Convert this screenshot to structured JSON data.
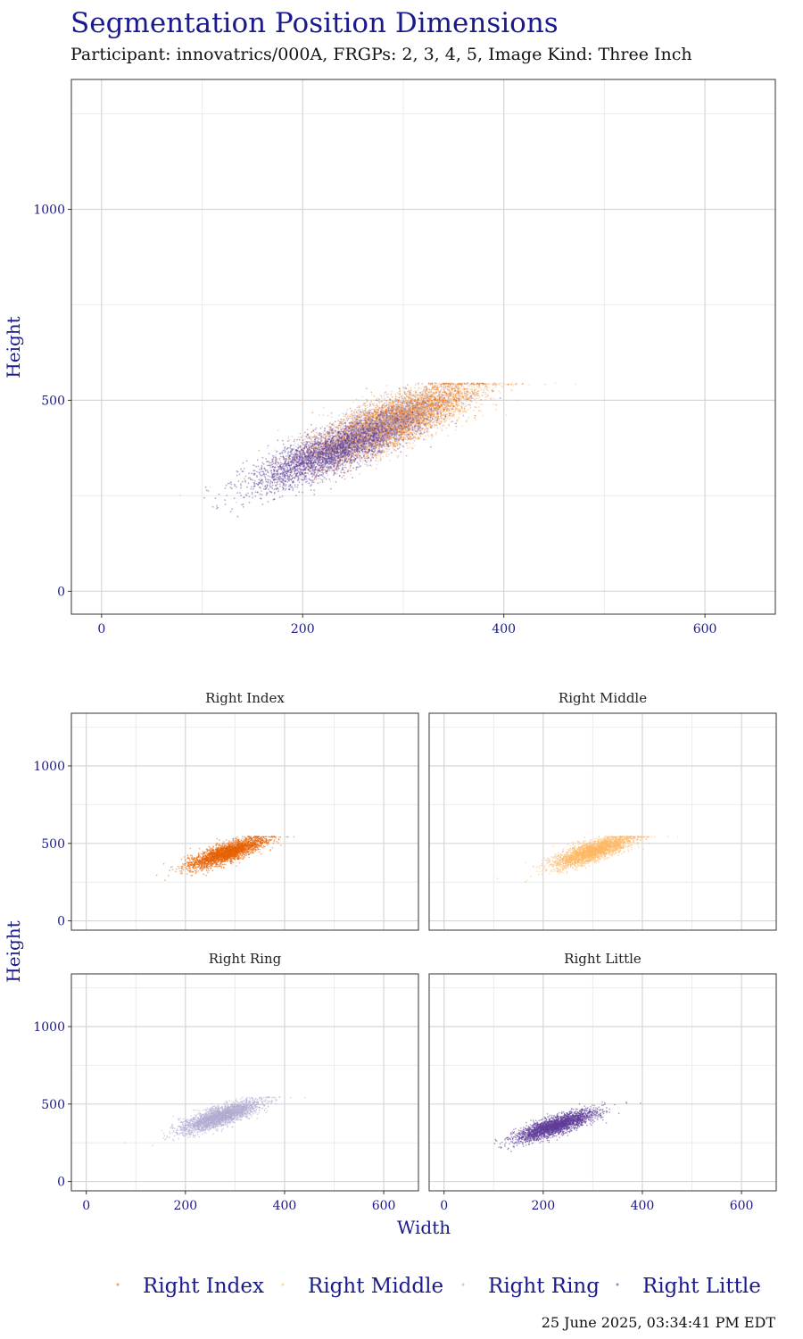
{
  "header": {
    "title": "Segmentation Position Dimensions",
    "subtitle": "Participant: innovatrics/000A, FRGPs: 2, 3, 4, 5, Image Kind: Three Inch"
  },
  "footer": {
    "timestamp": "25 June 2025, 03:34:41 PM EDT"
  },
  "colors": {
    "right_index": "#e66101",
    "right_middle": "#fdb863",
    "right_ring": "#b2abd2",
    "right_little": "#5e3c99",
    "axis_text": "#1a1a8c"
  },
  "chart_data": [
    {
      "type": "scatter",
      "panel": "combined",
      "title": "Segmentation Position Dimensions",
      "xlabel": "",
      "ylabel": "Height",
      "xlim": [
        -30,
        670
      ],
      "ylim": [
        -60,
        1340
      ],
      "x_ticks": [
        0,
        200,
        400,
        600
      ],
      "y_ticks": [
        0,
        500,
        1000
      ],
      "grid": true,
      "series": [
        {
          "name": "Right Index",
          "center": [
            285,
            440
          ],
          "x_spread": 38,
          "slope": 1.05,
          "y_noise": 30,
          "height_cap": 545
        },
        {
          "name": "Right Middle",
          "center": [
            300,
            450
          ],
          "x_spread": 40,
          "slope": 1.05,
          "y_noise": 32,
          "height_cap": 545
        },
        {
          "name": "Right Ring",
          "center": [
            270,
            420
          ],
          "x_spread": 40,
          "slope": 1.0,
          "y_noise": 30,
          "height_cap": 545
        },
        {
          "name": "Right Little",
          "center": [
            225,
            360
          ],
          "x_spread": 40,
          "slope": 1.0,
          "y_noise": 28,
          "height_cap": 545
        }
      ]
    },
    {
      "type": "scatter",
      "panel": "facets",
      "xlabel": "Width",
      "ylabel": "Height",
      "xlim": [
        -30,
        670
      ],
      "ylim": [
        -60,
        1340
      ],
      "x_ticks": [
        0,
        200,
        400,
        600
      ],
      "y_ticks": [
        0,
        500,
        1000
      ],
      "grid": true,
      "facets": [
        {
          "strip": "Right Index",
          "series": "Right Index"
        },
        {
          "strip": "Right Middle",
          "series": "Right Middle"
        },
        {
          "strip": "Right Ring",
          "series": "Right Ring"
        },
        {
          "strip": "Right Little",
          "series": "Right Little"
        }
      ]
    }
  ],
  "legend": {
    "placement": "bottom",
    "items": [
      "Right Index",
      "Right Middle",
      "Right Ring",
      "Right Little"
    ]
  }
}
